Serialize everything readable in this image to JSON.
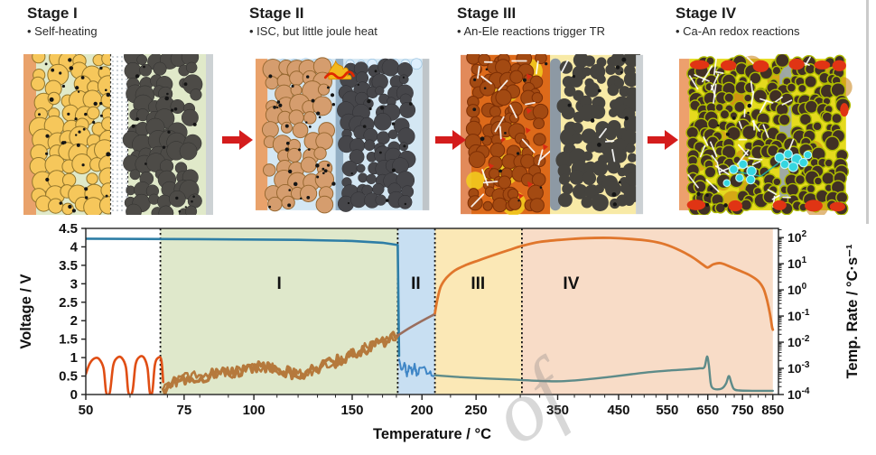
{
  "figure": {
    "background": "#ffffff"
  },
  "arrow_color": "#d41c1c",
  "watermark_text": "of",
  "stages": [
    {
      "title": "Stage I",
      "bullet": "•  Self-heating",
      "palette": {
        "bg": "#e0e9c9",
        "collector_left": "#e9a26b",
        "cathode": "#f6c75b",
        "cathode_stroke": "#93762c",
        "separator": "#ffffff",
        "anode": "#4d4b47",
        "collector_right": "#cdd2d4",
        "dot": "#151515"
      }
    },
    {
      "title": "Stage II",
      "bullet": "•  ISC, but little joule heat",
      "palette": {
        "bg": "#d4e7f3",
        "collector_left": "#e9a26b",
        "cathode": "#d59d6e",
        "cathode_stroke": "#96672f",
        "separator": "#93aec3",
        "anode": "#46464a",
        "collector_right": "#bfc5c9",
        "dot": "#151515",
        "flame": "#f2b81c",
        "flame_stroke": "#d98a00",
        "flame_accent": "#e02800",
        "bubble": "#ddeefc"
      }
    },
    {
      "title": "Stage III",
      "bullet": "•  An-Ele reactions trigger TR",
      "palette": {
        "bg": "#f8eaa6",
        "collector_left": "#e28a5a",
        "fire_base": "#dd6a1a",
        "fire_yellow": "#f3cf1f",
        "fire_dark": "#a34a12",
        "fire_red": "#d92b12",
        "separator": "#8d99a4",
        "anode": "#45433e",
        "collector_right": "#ccd1d4",
        "dot": "#151515",
        "streak": "#ffffff"
      }
    },
    {
      "title": "Stage IV",
      "bullet": "•  Ca-An redox reactions",
      "palette": {
        "base": "#e5da1e",
        "glow": "#c97f10",
        "particle": "#413024",
        "particle_ring": "#aebc00",
        "red_blob": "#e03414",
        "bubble": "#35d6e0",
        "bubble_stroke": "#bff5f8",
        "bond": "#1fb7ad",
        "separator": "#99a5b0",
        "collector_left": "#eda06d",
        "collector_right": "#c6cbce",
        "streak": "#ffffff",
        "dot": "#151515"
      }
    }
  ],
  "chart_data": {
    "type": "line",
    "xlabel": "Temperature / °C",
    "ylabel_left": "Voltage / V",
    "ylabel_right": "Temp. Rate / °C·s⁻¹",
    "x_scale": "log",
    "x_range": [
      50,
      870
    ],
    "x_ticks": [
      50,
      75,
      100,
      150,
      200,
      250,
      350,
      450,
      550,
      650,
      750,
      850
    ],
    "x_minor_ticks": [
      60,
      70,
      80,
      90,
      110,
      120,
      130,
      140,
      160,
      170,
      180,
      190,
      225,
      275,
      300,
      325,
      375,
      400,
      425,
      475,
      500,
      525,
      575,
      600,
      625,
      675,
      700,
      725,
      775,
      800,
      825
    ],
    "y_left_range": [
      0,
      4.5
    ],
    "y_left_ticks": [
      0,
      0.5,
      1,
      1.5,
      2,
      2.5,
      3,
      3.5,
      4,
      4.5
    ],
    "y_right_range_exp": [
      -4,
      2.35
    ],
    "y_right_ticks_exp": [
      2,
      1,
      0,
      -1,
      -2,
      -3,
      -4
    ],
    "grid": false,
    "legend": "none",
    "stage_boundaries": [
      68,
      181,
      211,
      302
    ],
    "stage_bands": [
      {
        "label": "I",
        "from": 68,
        "to": 181,
        "color": "#dfe8cb",
        "label_t": 111
      },
      {
        "label": "II",
        "from": 181,
        "to": 211,
        "color": "#c8dff2",
        "label_t": 195
      },
      {
        "label": "III",
        "from": 211,
        "to": 302,
        "color": "#fbe8b6",
        "label_t": 252
      },
      {
        "label": "IV",
        "from": 302,
        "to": 850,
        "color": "#f8dcc7",
        "label_t": 370
      }
    ],
    "series": [
      {
        "name": "voltage-flat",
        "axis": "left",
        "color": "#2e7ea6",
        "width": 2.6,
        "style": "polyline",
        "points": [
          [
            50,
            4.22
          ],
          [
            80,
            4.21
          ],
          [
            120,
            4.19
          ],
          [
            150,
            4.16
          ],
          [
            170,
            4.11
          ],
          [
            181,
            4.05
          ],
          [
            182,
            1.05
          ]
        ]
      },
      {
        "name": "voltage-noisy-II",
        "axis": "left",
        "color": "#3f86c6",
        "width": 2,
        "style": "jitter",
        "jitter": 3,
        "points": [
          [
            182,
            0.95
          ],
          [
            184,
            0.6
          ],
          [
            186,
            0.85
          ],
          [
            188,
            0.55
          ],
          [
            190,
            0.8
          ],
          [
            192,
            0.62
          ],
          [
            194,
            0.78
          ],
          [
            196,
            0.5
          ],
          [
            198,
            0.72
          ],
          [
            200,
            0.66
          ],
          [
            202,
            0.7
          ],
          [
            204,
            0.58
          ],
          [
            206,
            0.64
          ],
          [
            208,
            0.55
          ],
          [
            211,
            0.52
          ]
        ]
      },
      {
        "name": "voltage-tail",
        "axis": "left",
        "color": "#5e8b89",
        "width": 2.4,
        "style": "smooth",
        "points": [
          [
            211,
            0.52
          ],
          [
            235,
            0.47
          ],
          [
            265,
            0.43
          ],
          [
            295,
            0.4
          ],
          [
            325,
            0.37
          ],
          [
            355,
            0.36
          ],
          [
            395,
            0.41
          ],
          [
            435,
            0.48
          ],
          [
            475,
            0.55
          ],
          [
            515,
            0.61
          ],
          [
            555,
            0.65
          ],
          [
            595,
            0.68
          ],
          [
            628,
            0.71
          ],
          [
            641,
            0.74
          ],
          [
            648,
            1.03
          ],
          [
            653,
            0.78
          ],
          [
            658,
            0.3
          ],
          [
            664,
            0.17
          ],
          [
            676,
            0.14
          ],
          [
            690,
            0.17
          ],
          [
            701,
            0.3
          ],
          [
            709,
            0.5
          ],
          [
            716,
            0.32
          ],
          [
            724,
            0.15
          ],
          [
            740,
            0.11
          ],
          [
            780,
            0.1
          ],
          [
            850,
            0.1
          ]
        ]
      },
      {
        "name": "rate-arc-humps",
        "axis": "right",
        "color": "#e04e14",
        "width": 2.6,
        "style": "smooth",
        "points": [
          [
            50,
            0.0006
          ],
          [
            50.8,
            0.0015
          ],
          [
            51.8,
            0.0024
          ],
          [
            52.8,
            0.0023
          ],
          [
            53.8,
            0.001
          ],
          [
            54.4,
            0.00012
          ],
          [
            55.2,
            0.00012
          ],
          [
            56,
            0.0013
          ],
          [
            57,
            0.0026
          ],
          [
            58,
            0.0025
          ],
          [
            59,
            0.0011
          ],
          [
            59.6,
            0.00012
          ],
          [
            60.6,
            0.00013
          ],
          [
            61.4,
            0.0014
          ],
          [
            62.5,
            0.0028
          ],
          [
            63.6,
            0.0025
          ],
          [
            64.5,
            0.001
          ],
          [
            65.1,
            0.00012
          ],
          [
            65.8,
            0.00013
          ],
          [
            66.5,
            0.0014
          ],
          [
            67.5,
            0.0026
          ],
          [
            68.3,
            0.002
          ],
          [
            68.8,
            0.0003
          ]
        ]
      },
      {
        "name": "rate-stage-I-noisy",
        "axis": "right",
        "color": "#b5793c",
        "width": 3.6,
        "style": "jitter2",
        "jitter": 6.5,
        "points": [
          [
            68.8,
            0.00016
          ],
          [
            72,
            0.0003
          ],
          [
            76,
            0.00042
          ],
          [
            82,
            0.00052
          ],
          [
            88,
            0.00064
          ],
          [
            95,
            0.0008
          ],
          [
            102,
            0.00105
          ],
          [
            107,
            0.00125
          ],
          [
            112,
            0.0009
          ],
          [
            117,
            0.00062
          ],
          [
            122,
            0.00056
          ],
          [
            127,
            0.0008
          ],
          [
            133,
            0.0012
          ],
          [
            140,
            0.0018
          ],
          [
            147,
            0.0028
          ],
          [
            154,
            0.0045
          ],
          [
            162,
            0.007
          ],
          [
            170,
            0.0105
          ],
          [
            176,
            0.014
          ],
          [
            181,
            0.018
          ]
        ]
      },
      {
        "name": "rate-stage-II",
        "axis": "right",
        "color": "#9a6e5e",
        "width": 2.6,
        "style": "smooth",
        "points": [
          [
            181,
            0.018
          ],
          [
            190,
            0.035
          ],
          [
            200,
            0.065
          ],
          [
            211,
            0.12
          ]
        ]
      },
      {
        "name": "rate-main",
        "axis": "right",
        "color": "#e0762c",
        "width": 2.8,
        "style": "smooth",
        "points": [
          [
            211,
            0.13
          ],
          [
            213,
            0.4
          ],
          [
            216,
            1.3
          ],
          [
            221,
            2.8
          ],
          [
            229,
            5.5
          ],
          [
            240,
            9
          ],
          [
            254,
            14
          ],
          [
            270,
            22
          ],
          [
            286,
            33
          ],
          [
            302,
            48
          ],
          [
            325,
            68
          ],
          [
            355,
            82
          ],
          [
            395,
            95
          ],
          [
            435,
            97
          ],
          [
            475,
            88
          ],
          [
            510,
            75
          ],
          [
            545,
            55
          ],
          [
            580,
            32
          ],
          [
            612,
            17
          ],
          [
            638,
            9
          ],
          [
            650,
            7.2
          ],
          [
            665,
            9.5
          ],
          [
            685,
            10.5
          ],
          [
            710,
            8
          ],
          [
            740,
            5.5
          ],
          [
            770,
            3.8
          ],
          [
            800,
            2.2
          ],
          [
            818,
            1.1
          ],
          [
            830,
            0.4
          ],
          [
            840,
            0.12
          ],
          [
            847,
            0.04
          ],
          [
            850,
            0.03
          ]
        ]
      }
    ]
  }
}
